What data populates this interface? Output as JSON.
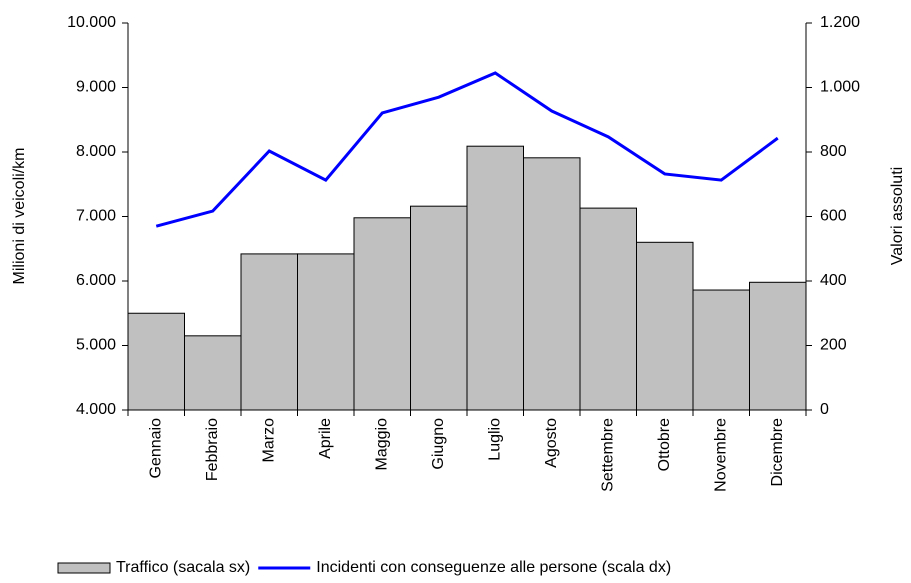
{
  "chart_data": {
    "type": "bar_line",
    "y_label": "Milioni di veicoli/km",
    "y2_label": "Valori assoluti",
    "categories": [
      "Gennaio",
      "Febbraio",
      "Marzo",
      "Aprile",
      "Maggio",
      "Giugno",
      "Luglio",
      "Agosto",
      "Settembre",
      "Ottobre",
      "Novembre",
      "Dicembre"
    ],
    "series": [
      {
        "name": "Traffico (sacala sx)",
        "type": "bar",
        "color": "#c0c0c0",
        "values": [
          5500,
          5150,
          6420,
          6420,
          6980,
          7160,
          8090,
          7910,
          7130,
          6600,
          5860,
          5980
        ]
      },
      {
        "name": "Incidenti con conseguenze alle persone (scala dx)",
        "type": "line",
        "axis": "y2",
        "color": "#0000ff",
        "values": [
          570,
          617,
          803,
          713,
          921,
          970,
          1045,
          927,
          847,
          732,
          713,
          843
        ]
      }
    ],
    "ylim": [
      4000,
      10000
    ],
    "yticks": [
      {
        "value": 4000,
        "label": "4.000"
      },
      {
        "value": 5000,
        "label": "5.000"
      },
      {
        "value": 6000,
        "label": "6.000"
      },
      {
        "value": 7000,
        "label": "7.000"
      },
      {
        "value": 8000,
        "label": "8.000"
      },
      {
        "value": 9000,
        "label": "9.000"
      },
      {
        "value": 10000,
        "label": "10.000"
      }
    ],
    "y2lim": [
      0,
      1200
    ],
    "y2ticks": [
      0,
      200,
      400,
      600,
      800,
      {
        "value": 1000,
        "label": "1.000"
      },
      {
        "value": 1200,
        "label": "1.200"
      }
    ],
    "grid": false
  }
}
